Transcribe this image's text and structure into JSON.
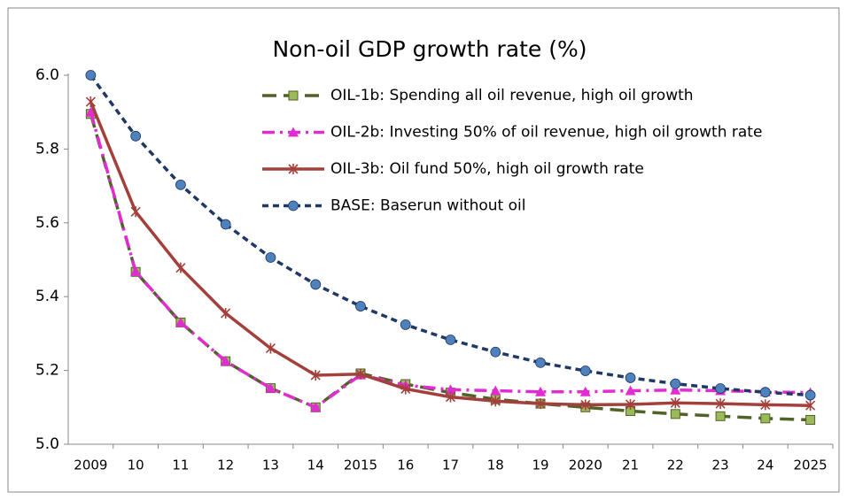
{
  "chart_data": {
    "type": "line",
    "title": "Non-oil GDP growth rate (%)",
    "categories": [
      "2009",
      "10",
      "11",
      "12",
      "13",
      "14",
      "2015",
      "16",
      "17",
      "18",
      "19",
      "2020",
      "21",
      "22",
      "23",
      "24",
      "2025"
    ],
    "ylim": [
      5.0,
      6.0
    ],
    "yticks": [
      {
        "value": 5.0,
        "label": "5.0"
      },
      5.2,
      5.4,
      5.6,
      5.8,
      {
        "value": 6.0,
        "label": "6.0"
      }
    ],
    "grid": false,
    "legend": "top-right",
    "series": [
      {
        "name": "OIL-1b: Spending all oil revenue, high oil growth",
        "color": "#4f6228",
        "marker_color": "#9bbb59",
        "marker": "square",
        "dash": "long",
        "values": [
          5.895,
          5.467,
          5.33,
          5.225,
          5.152,
          5.1,
          5.192,
          5.163,
          5.14,
          5.122,
          5.11,
          5.1,
          5.09,
          5.082,
          5.076,
          5.07,
          5.066
        ]
      },
      {
        "name": "OIL-2b: Investing 50% of oil revenue, high oil growth rate",
        "color": "#e12cd2",
        "marker_color": "#e12cd2",
        "marker": "triangle",
        "dash": "dashdot",
        "values": [
          5.9,
          5.468,
          5.33,
          5.225,
          5.152,
          5.1,
          5.188,
          5.16,
          5.148,
          5.145,
          5.142,
          5.142,
          5.145,
          5.147,
          5.145,
          5.142,
          5.14
        ]
      },
      {
        "name": "OIL-3b: Oil fund 50%, high oil growth rate",
        "color": "#a3403b",
        "marker_color": "#a3403b",
        "marker": "star",
        "dash": "solid",
        "values": [
          5.928,
          5.63,
          5.478,
          5.355,
          5.26,
          5.187,
          5.19,
          5.15,
          5.128,
          5.117,
          5.11,
          5.107,
          5.108,
          5.112,
          5.11,
          5.107,
          5.105
        ]
      },
      {
        "name": "BASE: Baserun without oil",
        "color": "#1f3864",
        "marker_color": "#4f81bd",
        "marker": "circle",
        "dash": "short",
        "values": [
          6.0,
          5.835,
          5.703,
          5.596,
          5.506,
          5.433,
          5.374,
          5.324,
          5.283,
          5.25,
          5.221,
          5.199,
          5.18,
          5.164,
          5.151,
          5.141,
          5.133
        ]
      }
    ]
  }
}
